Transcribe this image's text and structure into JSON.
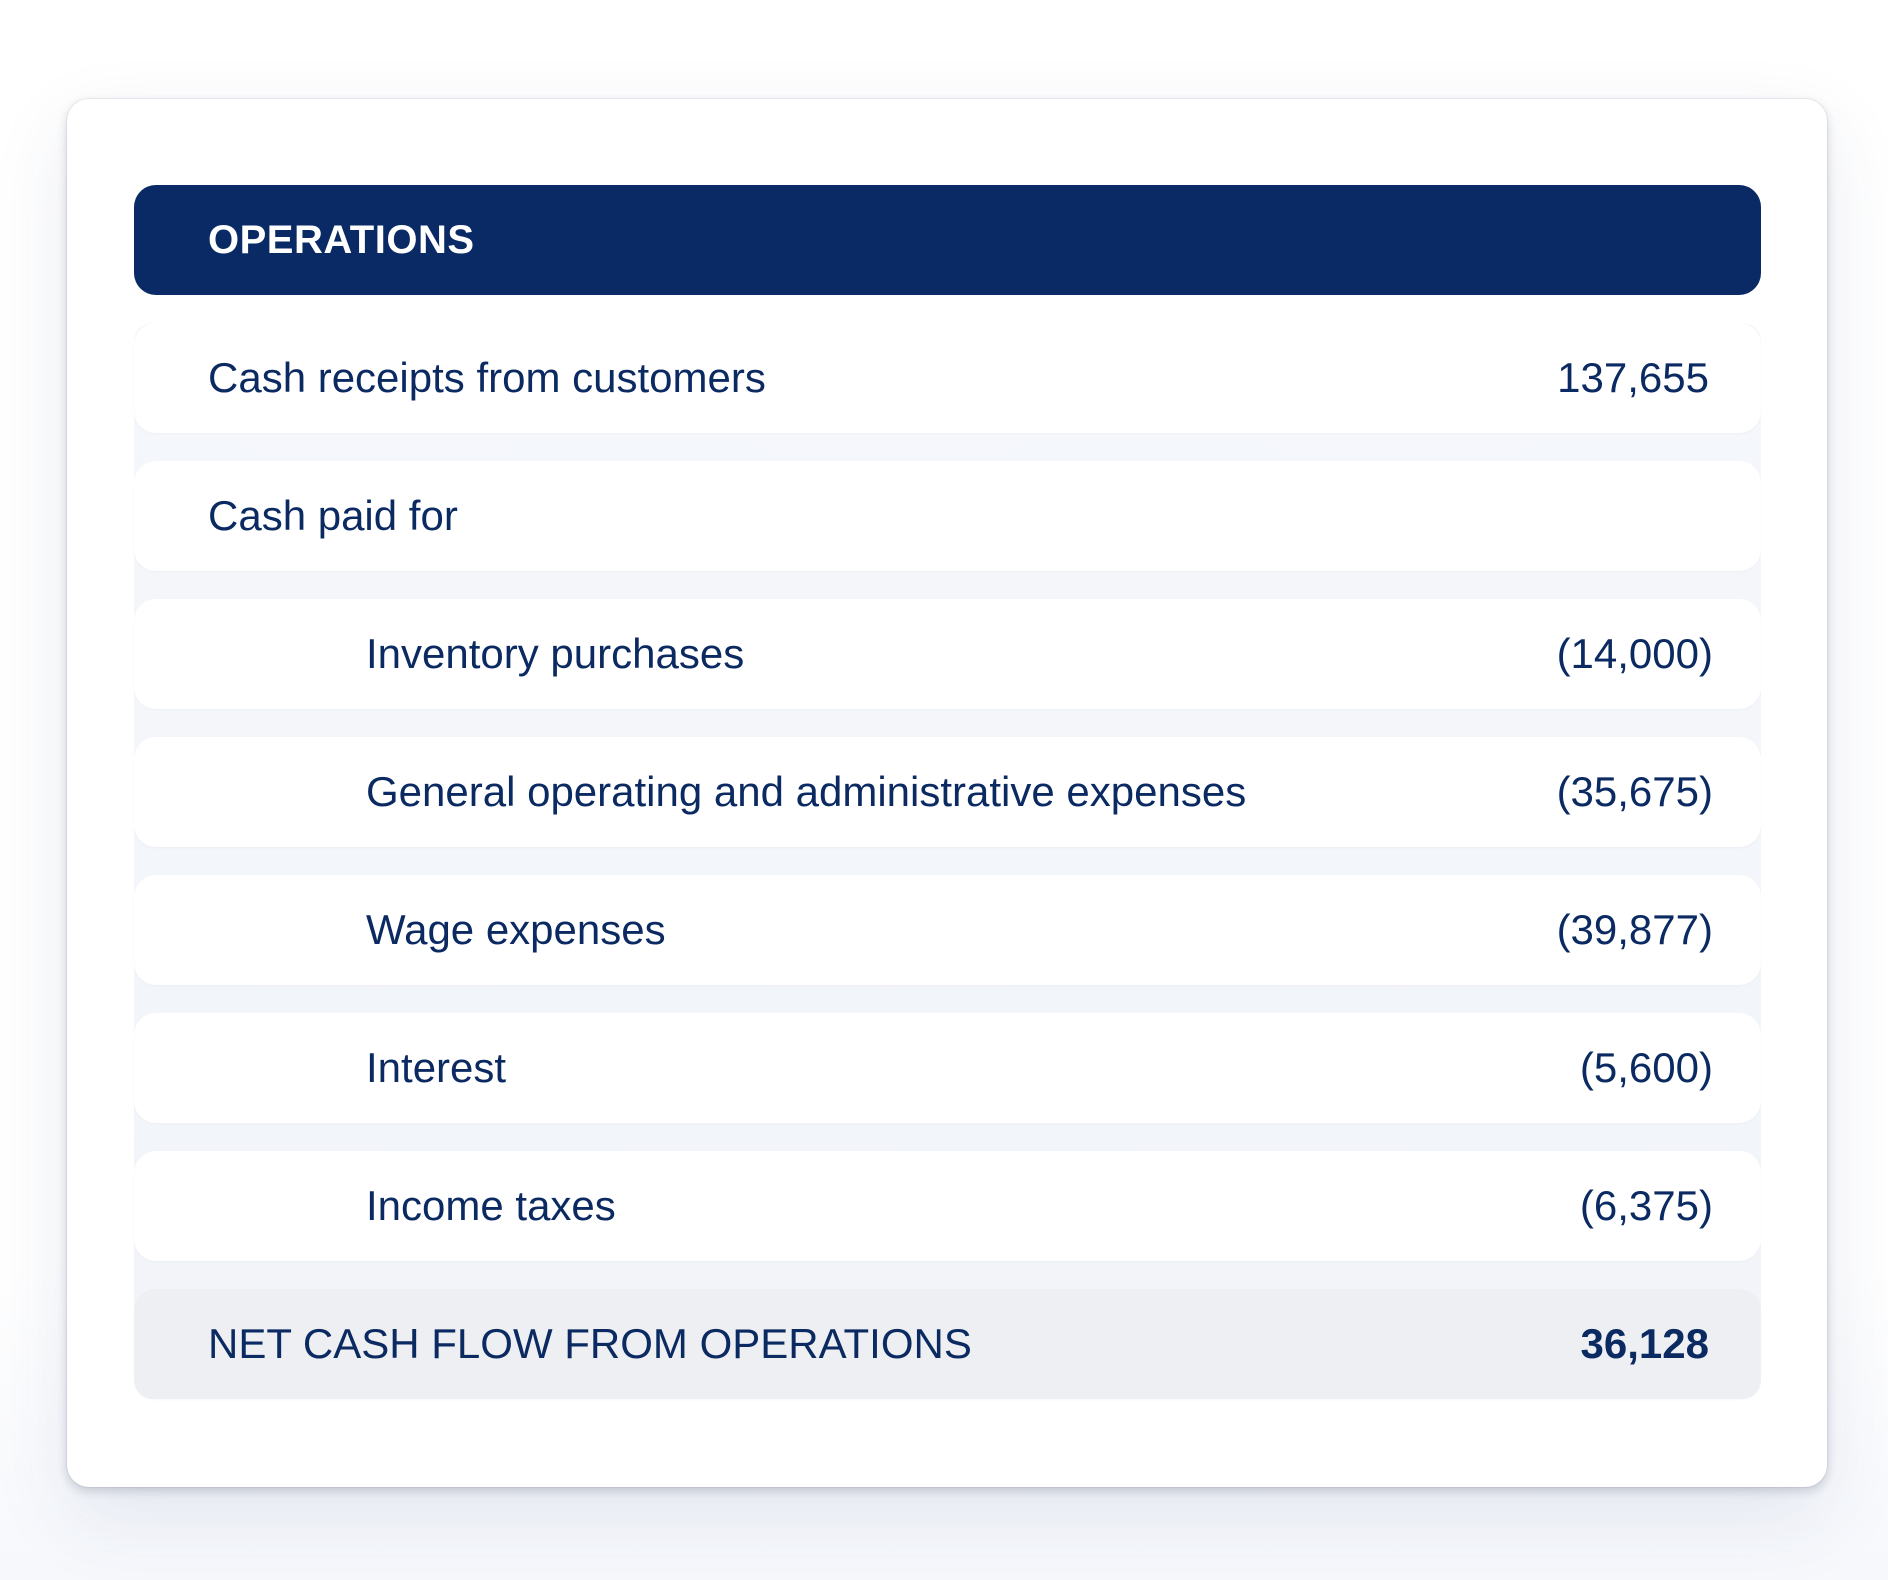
{
  "section": {
    "title": "OPERATIONS"
  },
  "rows": [
    {
      "label": "Cash receipts from customers",
      "value": "137,655"
    },
    {
      "label": "Cash paid for",
      "value": ""
    },
    {
      "label": "Inventory purchases",
      "value": "(14,000)"
    },
    {
      "label": "General operating and administrative expenses",
      "value": "(35,675)"
    },
    {
      "label": "Wage expenses",
      "value": "(39,877)"
    },
    {
      "label": "Interest",
      "value": "(5,600)"
    },
    {
      "label": "Income taxes",
      "value": "(6,375)"
    }
  ],
  "total": {
    "label": "NET CASH FLOW FROM OPERATIONS",
    "value": "36,128"
  },
  "colors": {
    "header_bg": "#0a2a66",
    "text": "#0b2a62",
    "row_bg": "#ffffff",
    "total_bg": "#eeeff2"
  }
}
